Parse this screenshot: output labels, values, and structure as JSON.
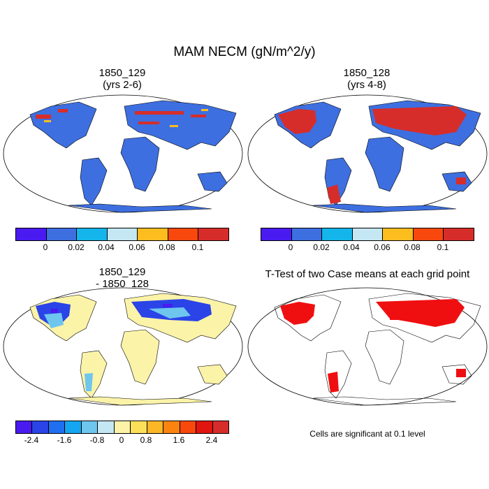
{
  "title": "MAM NECM (gN/m^2/y)",
  "panels": {
    "p1": {
      "title_line1": "1850_129",
      "title_line2": "(yrs 2-6)"
    },
    "p2": {
      "title_line1": "1850_128",
      "title_line2": "(yrs 4-8)"
    },
    "p3": {
      "title_line1": "1850_129",
      "title_line2": "- 1850_128"
    },
    "p4": {
      "title_line1": "T-Test of two Case means at each grid point"
    }
  },
  "colorbar_top": {
    "colors": [
      "#4a1bf0",
      "#3d6fe0",
      "#14b5ea",
      "#c4e7f3",
      "#fdbd1f",
      "#f8480e",
      "#d62d2a"
    ],
    "labels": [
      "0",
      "0.02",
      "0.04",
      "0.06",
      "0.08",
      "0.1"
    ]
  },
  "colorbar_diff": {
    "colors": [
      "#4a1bf0",
      "#2a44e8",
      "#1f6ff0",
      "#14a6f0",
      "#6ec6ee",
      "#c4e7f3",
      "#fdf3a8",
      "#fde05a",
      "#fbb726",
      "#fb8411",
      "#f8480e",
      "#e1140f",
      "#d62d2a"
    ],
    "labels": [
      "-2.4",
      "-1.6",
      "-0.8",
      "0",
      "0.8",
      "1.6",
      "2.4"
    ]
  },
  "significance_note": "Cells are significant at 0.1 level",
  "colors": {
    "ocean": "#ffffff",
    "land_p1": "#3d6fe0",
    "land_p2": "#3d6fe0",
    "land_p3": "#fbf3a8",
    "sig": "#ef0f10"
  }
}
